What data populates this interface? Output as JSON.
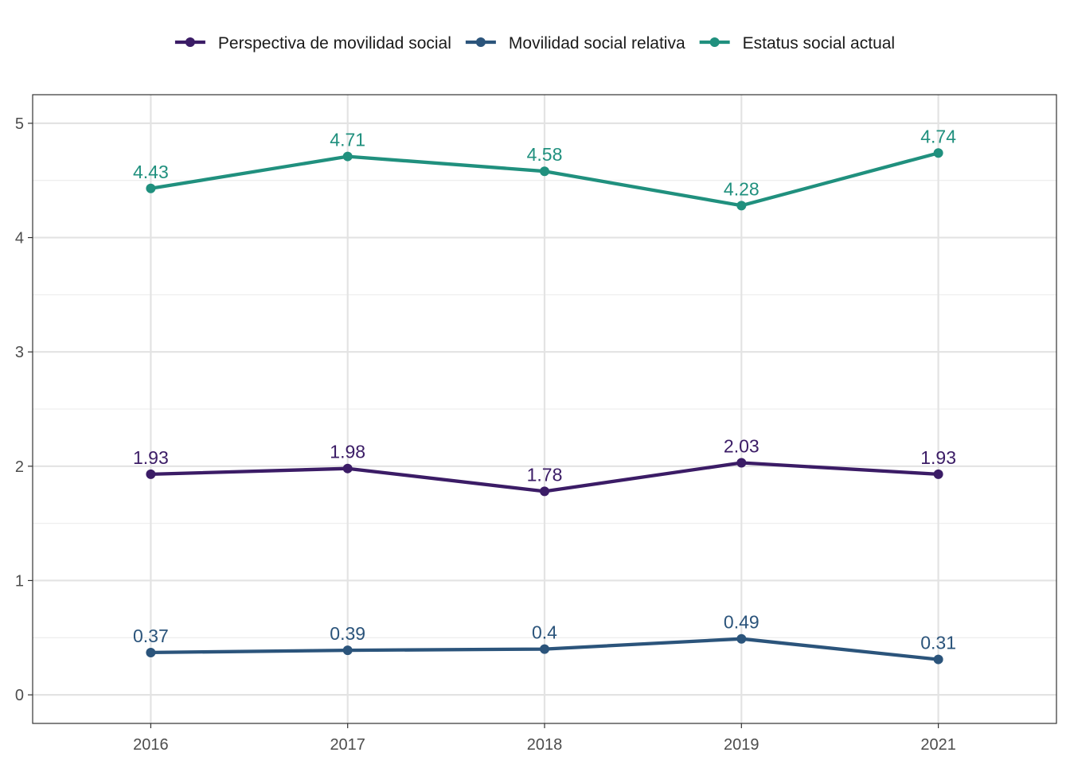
{
  "chart_data": {
    "type": "line",
    "title": "",
    "xlabel": "",
    "ylabel": "",
    "categories": [
      "2016",
      "2017",
      "2018",
      "2019",
      "2021"
    ],
    "y_ticks": [
      "0",
      "1",
      "2",
      "3",
      "4",
      "5"
    ],
    "ylim": [
      -0.25,
      5.25
    ],
    "grid": true,
    "legend_position": "top",
    "series": [
      {
        "name": "Perspectiva de movilidad social",
        "color": "#3b1c66",
        "values": [
          1.93,
          1.98,
          1.78,
          2.03,
          1.93
        ],
        "labels": [
          "1.93",
          "1.98",
          "1.78",
          "2.03",
          "1.93"
        ]
      },
      {
        "name": "Movilidad social relativa",
        "color": "#2b547b",
        "values": [
          0.37,
          0.39,
          0.4,
          0.49,
          0.31
        ],
        "labels": [
          "0.37",
          "0.39",
          "0.4",
          "0.49",
          "0.31"
        ]
      },
      {
        "name": "Estatus social actual",
        "color": "#20907e",
        "values": [
          4.43,
          4.71,
          4.58,
          4.28,
          4.74
        ],
        "labels": [
          "4.43",
          "4.71",
          "4.58",
          "4.28",
          "4.74"
        ]
      }
    ]
  }
}
